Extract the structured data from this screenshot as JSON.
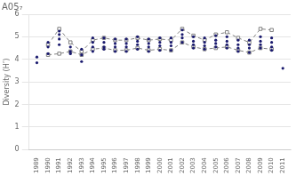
{
  "chart_data": {
    "type": "line",
    "title": "A05₇",
    "ylabel": "Diversity (H’)",
    "xlim": [
      1988.3,
      2011.7
    ],
    "xticks": [
      1989,
      1990,
      1991,
      1992,
      1993,
      1994,
      1995,
      1996,
      1997,
      1998,
      1999,
      2000,
      2001,
      2002,
      2003,
      2004,
      2005,
      2006,
      2007,
      2008,
      2009,
      2010,
      2011
    ],
    "ylim": [
      0,
      6
    ],
    "yticks": [
      0,
      1,
      2,
      3,
      4,
      5,
      6
    ],
    "grid": true,
    "series": [
      {
        "type": "scatter",
        "color": "#1a1a6e",
        "marker": "circle",
        "x": [
          1989,
          1989,
          1990,
          1990,
          1990,
          1991,
          1991,
          1991,
          1991,
          1992,
          1992,
          1992,
          1993,
          1993,
          1993,
          1994,
          1994,
          1994,
          1994,
          1995,
          1995,
          1995,
          1995,
          1996,
          1996,
          1996,
          1996,
          1997,
          1997,
          1997,
          1997,
          1998,
          1998,
          1998,
          1998,
          1999,
          1999,
          1999,
          1999,
          2000,
          2000,
          2000,
          2000,
          2001,
          2001,
          2001,
          2001,
          2002,
          2002,
          2002,
          2002,
          2003,
          2003,
          2003,
          2003,
          2004,
          2004,
          2004,
          2004,
          2005,
          2005,
          2005,
          2005,
          2006,
          2006,
          2006,
          2006,
          2007,
          2007,
          2007,
          2007,
          2008,
          2008,
          2008,
          2008,
          2009,
          2009,
          2009,
          2009,
          2010,
          2010,
          2010,
          2010,
          2011
        ],
        "values": [
          3.85,
          4.1,
          4.25,
          4.55,
          4.75,
          4.65,
          4.9,
          5.1,
          5.25,
          4.25,
          4.35,
          4.55,
          3.9,
          4.2,
          4.45,
          4.35,
          4.55,
          4.75,
          4.95,
          4.45,
          4.55,
          4.75,
          4.95,
          4.35,
          4.55,
          4.7,
          4.9,
          4.35,
          4.55,
          4.7,
          4.9,
          4.45,
          4.65,
          4.8,
          5.0,
          4.35,
          4.55,
          4.7,
          4.9,
          4.4,
          4.6,
          4.75,
          4.95,
          4.4,
          4.6,
          4.75,
          4.95,
          4.75,
          4.95,
          5.1,
          5.3,
          4.5,
          4.65,
          4.8,
          5.0,
          4.45,
          4.6,
          4.75,
          4.95,
          4.55,
          4.7,
          4.85,
          5.05,
          4.5,
          4.65,
          4.8,
          5.0,
          4.35,
          4.5,
          4.65,
          4.85,
          4.3,
          4.5,
          4.65,
          4.85,
          4.5,
          4.65,
          4.8,
          5.0,
          4.4,
          4.55,
          4.75,
          4.95,
          3.6
        ]
      },
      {
        "type": "line",
        "color": "#808080",
        "marker": "square",
        "line_style": "dashed",
        "x": [
          1990,
          1991,
          1992,
          1993,
          1994,
          1995,
          1996,
          1997,
          1998,
          1999,
          2000,
          2001,
          2002,
          2003,
          2004,
          2005,
          2006,
          2007,
          2008,
          2009,
          2010
        ],
        "values": [
          4.65,
          5.35,
          4.75,
          4.35,
          4.85,
          4.95,
          4.85,
          4.85,
          4.95,
          4.85,
          4.9,
          4.85,
          5.35,
          5.05,
          4.85,
          5.1,
          5.2,
          4.95,
          4.75,
          5.35,
          5.3
        ]
      },
      {
        "type": "line",
        "color": "#808080",
        "marker": "square",
        "line_style": "dashed",
        "x": [
          1990,
          1991,
          1992,
          1993,
          1994,
          1995,
          1996,
          1997,
          1998,
          1999,
          2000,
          2001,
          2002,
          2003,
          2004,
          2005,
          2006,
          2007,
          2008,
          2009,
          2010
        ],
        "values": [
          4.2,
          4.25,
          4.35,
          4.2,
          4.45,
          4.5,
          4.4,
          4.4,
          4.5,
          4.4,
          4.45,
          4.4,
          4.75,
          4.55,
          4.45,
          4.5,
          4.55,
          4.4,
          4.3,
          4.5,
          4.45
        ]
      }
    ]
  }
}
